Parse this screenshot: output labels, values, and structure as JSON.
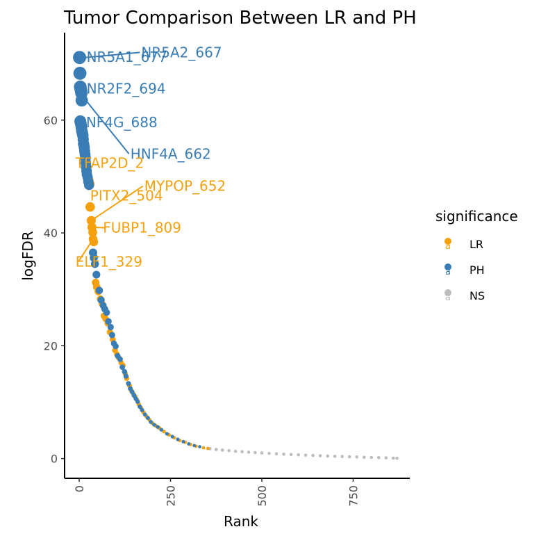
{
  "chart_data": {
    "type": "scatter",
    "title": "Tumor Comparison Between LR and PH",
    "xlabel": "Rank",
    "ylabel": "logFDR",
    "xlim": [
      -40,
      905
    ],
    "ylim": [
      -3.5,
      75.5
    ],
    "x_ticks": [
      0,
      250,
      500,
      750
    ],
    "y_ticks": [
      0,
      20,
      40,
      60
    ],
    "x_tick_labels": [
      "0",
      "250",
      "500",
      "750"
    ],
    "y_tick_labels": [
      "0",
      "20",
      "40",
      "60"
    ],
    "grid": false,
    "legend": {
      "title": "significance",
      "position": "right",
      "entries": [
        {
          "key": "LR",
          "label": "LR",
          "color": "#F5A10F"
        },
        {
          "key": "PH",
          "label": "PH",
          "color": "#3A7DB5"
        },
        {
          "key": "NS",
          "label": "NS",
          "color": "#BDBDBD"
        }
      ]
    },
    "series": [
      {
        "key": "PH",
        "points": [
          [
            1,
            71.1
          ],
          [
            2,
            68.3
          ],
          [
            3,
            65.9
          ],
          [
            4,
            65.6
          ],
          [
            5,
            65.2
          ],
          [
            6,
            64.8
          ],
          [
            7,
            63.5
          ],
          [
            3,
            59.8
          ],
          [
            4,
            59.5
          ],
          [
            5,
            59.2
          ],
          [
            6,
            58.7
          ],
          [
            7,
            58.2
          ],
          [
            8,
            57.9
          ],
          [
            9,
            57.6
          ],
          [
            10,
            57.3
          ],
          [
            11,
            56.6
          ],
          [
            12,
            55.8
          ],
          [
            13,
            55.5
          ],
          [
            14,
            55.1
          ],
          [
            15,
            54.5
          ],
          [
            16,
            53.9
          ],
          [
            17,
            53.3
          ],
          [
            18,
            52.4
          ],
          [
            19,
            51.7
          ],
          [
            20,
            51.0
          ],
          [
            21,
            50.4
          ],
          [
            23,
            49.9
          ],
          [
            25,
            49.1
          ],
          [
            27,
            48.5
          ],
          [
            38,
            36.5
          ],
          [
            40,
            35.6
          ],
          [
            43,
            34.5
          ],
          [
            47,
            32.6
          ],
          [
            55,
            29.8
          ],
          [
            60,
            28.1
          ],
          [
            66,
            27.1
          ],
          [
            70,
            26.5
          ],
          [
            75,
            25.9
          ],
          [
            80,
            24.3
          ],
          [
            86,
            23.3
          ],
          [
            90,
            21.9
          ],
          [
            95,
            20.4
          ],
          [
            100,
            19.9
          ],
          [
            105,
            18.2
          ],
          [
            112,
            17.6
          ],
          [
            118,
            16.2
          ],
          [
            124,
            15.4
          ],
          [
            128,
            14.6
          ],
          [
            135,
            13.3
          ],
          [
            140,
            12.4
          ],
          [
            145,
            11.8
          ],
          [
            150,
            11.2
          ],
          [
            155,
            10.6
          ],
          [
            160,
            10.1
          ],
          [
            166,
            9.2
          ],
          [
            172,
            8.6
          ],
          [
            180,
            7.8
          ],
          [
            188,
            7.2
          ],
          [
            196,
            6.5
          ],
          [
            205,
            6.0
          ],
          [
            215,
            5.6
          ],
          [
            225,
            5.1
          ],
          [
            240,
            4.4
          ],
          [
            255,
            3.9
          ],
          [
            270,
            3.4
          ],
          [
            285,
            3.0
          ],
          [
            300,
            2.6
          ],
          [
            315,
            2.3
          ],
          [
            330,
            2.1
          ]
        ]
      },
      {
        "key": "LR",
        "points": [
          [
            25,
            49.4
          ],
          [
            28,
            48.7
          ],
          [
            30,
            44.6
          ],
          [
            33,
            42.2
          ],
          [
            35,
            41.0
          ],
          [
            37,
            40.1
          ],
          [
            38,
            38.9
          ],
          [
            40,
            38.4
          ],
          [
            45,
            31.2
          ],
          [
            48,
            30.4
          ],
          [
            52,
            29.6
          ],
          [
            58,
            28.3
          ],
          [
            63,
            27.4
          ],
          [
            68,
            25.3
          ],
          [
            72,
            24.8
          ],
          [
            78,
            24.0
          ],
          [
            84,
            22.4
          ],
          [
            92,
            21.1
          ],
          [
            98,
            19.2
          ],
          [
            103,
            18.5
          ],
          [
            108,
            17.9
          ],
          [
            115,
            17.0
          ],
          [
            120,
            16.5
          ],
          [
            126,
            15.1
          ],
          [
            130,
            14.2
          ],
          [
            138,
            12.9
          ],
          [
            143,
            12.0
          ],
          [
            148,
            11.5
          ],
          [
            153,
            11.0
          ],
          [
            158,
            10.4
          ],
          [
            163,
            9.6
          ],
          [
            169,
            9.0
          ],
          [
            176,
            8.2
          ],
          [
            184,
            7.5
          ],
          [
            192,
            6.9
          ],
          [
            200,
            6.3
          ],
          [
            210,
            5.8
          ],
          [
            220,
            5.4
          ],
          [
            232,
            4.8
          ],
          [
            246,
            4.2
          ],
          [
            260,
            3.7
          ],
          [
            275,
            3.2
          ],
          [
            290,
            2.9
          ],
          [
            305,
            2.5
          ],
          [
            320,
            2.2
          ],
          [
            340,
            1.9
          ],
          [
            352,
            1.8
          ]
        ]
      },
      {
        "key": "NS",
        "points": [
          [
            358,
            1.75
          ],
          [
            375,
            1.6
          ],
          [
            392,
            1.5
          ],
          [
            410,
            1.4
          ],
          [
            428,
            1.3
          ],
          [
            446,
            1.22
          ],
          [
            464,
            1.14
          ],
          [
            482,
            1.06
          ],
          [
            500,
            0.98
          ],
          [
            520,
            0.9
          ],
          [
            540,
            0.84
          ],
          [
            560,
            0.78
          ],
          [
            580,
            0.72
          ],
          [
            600,
            0.66
          ],
          [
            620,
            0.6
          ],
          [
            640,
            0.55
          ],
          [
            660,
            0.5
          ],
          [
            680,
            0.45
          ],
          [
            700,
            0.4
          ],
          [
            720,
            0.36
          ],
          [
            740,
            0.32
          ],
          [
            760,
            0.28
          ],
          [
            780,
            0.24
          ],
          [
            800,
            0.2
          ],
          [
            820,
            0.16
          ],
          [
            840,
            0.12
          ],
          [
            860,
            0.08
          ],
          [
            870,
            0.06
          ]
        ]
      }
    ],
    "annotations": [
      {
        "text": "NR5A1_677",
        "series": "PH",
        "point": [
          2,
          71.2
        ],
        "label_at": [
          20,
          71.2
        ],
        "line": false
      },
      {
        "text": "NR5A2_667",
        "series": "PH",
        "point": [
          2,
          71.0
        ],
        "label_at": [
          170,
          72.0
        ],
        "line": true
      },
      {
        "text": "NR2F2_694",
        "series": "PH",
        "point": [
          5,
          65.5
        ],
        "label_at": [
          20,
          65.6
        ],
        "line": false
      },
      {
        "text": "HNF4G_688",
        "series": "PH",
        "point": [
          5,
          59.5
        ],
        "label_at": [
          -10,
          59.6
        ],
        "line": false
      },
      {
        "text": "HNF4A_662",
        "series": "PH",
        "point": [
          6,
          64.5
        ],
        "label_at": [
          140,
          54.0
        ],
        "line": true
      },
      {
        "text": "TFAP2D_2",
        "series": "LR",
        "point": [
          25,
          49.4
        ],
        "label_at": [
          -10,
          52.4
        ],
        "line": false
      },
      {
        "text": "PITX2_504",
        "series": "LR",
        "point": [
          30,
          44.6
        ],
        "label_at": [
          30,
          46.6
        ],
        "line": false
      },
      {
        "text": "MYPOP_652",
        "series": "LR",
        "point": [
          33,
          42.2
        ],
        "label_at": [
          178,
          48.3
        ],
        "line": true
      },
      {
        "text": "FUBP1_809",
        "series": "LR",
        "point": [
          35,
          41.0
        ],
        "label_at": [
          65,
          40.9
        ],
        "line": true
      },
      {
        "text": "ELF1_329",
        "series": "LR",
        "point": [
          38,
          38.9
        ],
        "label_at": [
          -10,
          34.9
        ],
        "line": true
      }
    ]
  }
}
